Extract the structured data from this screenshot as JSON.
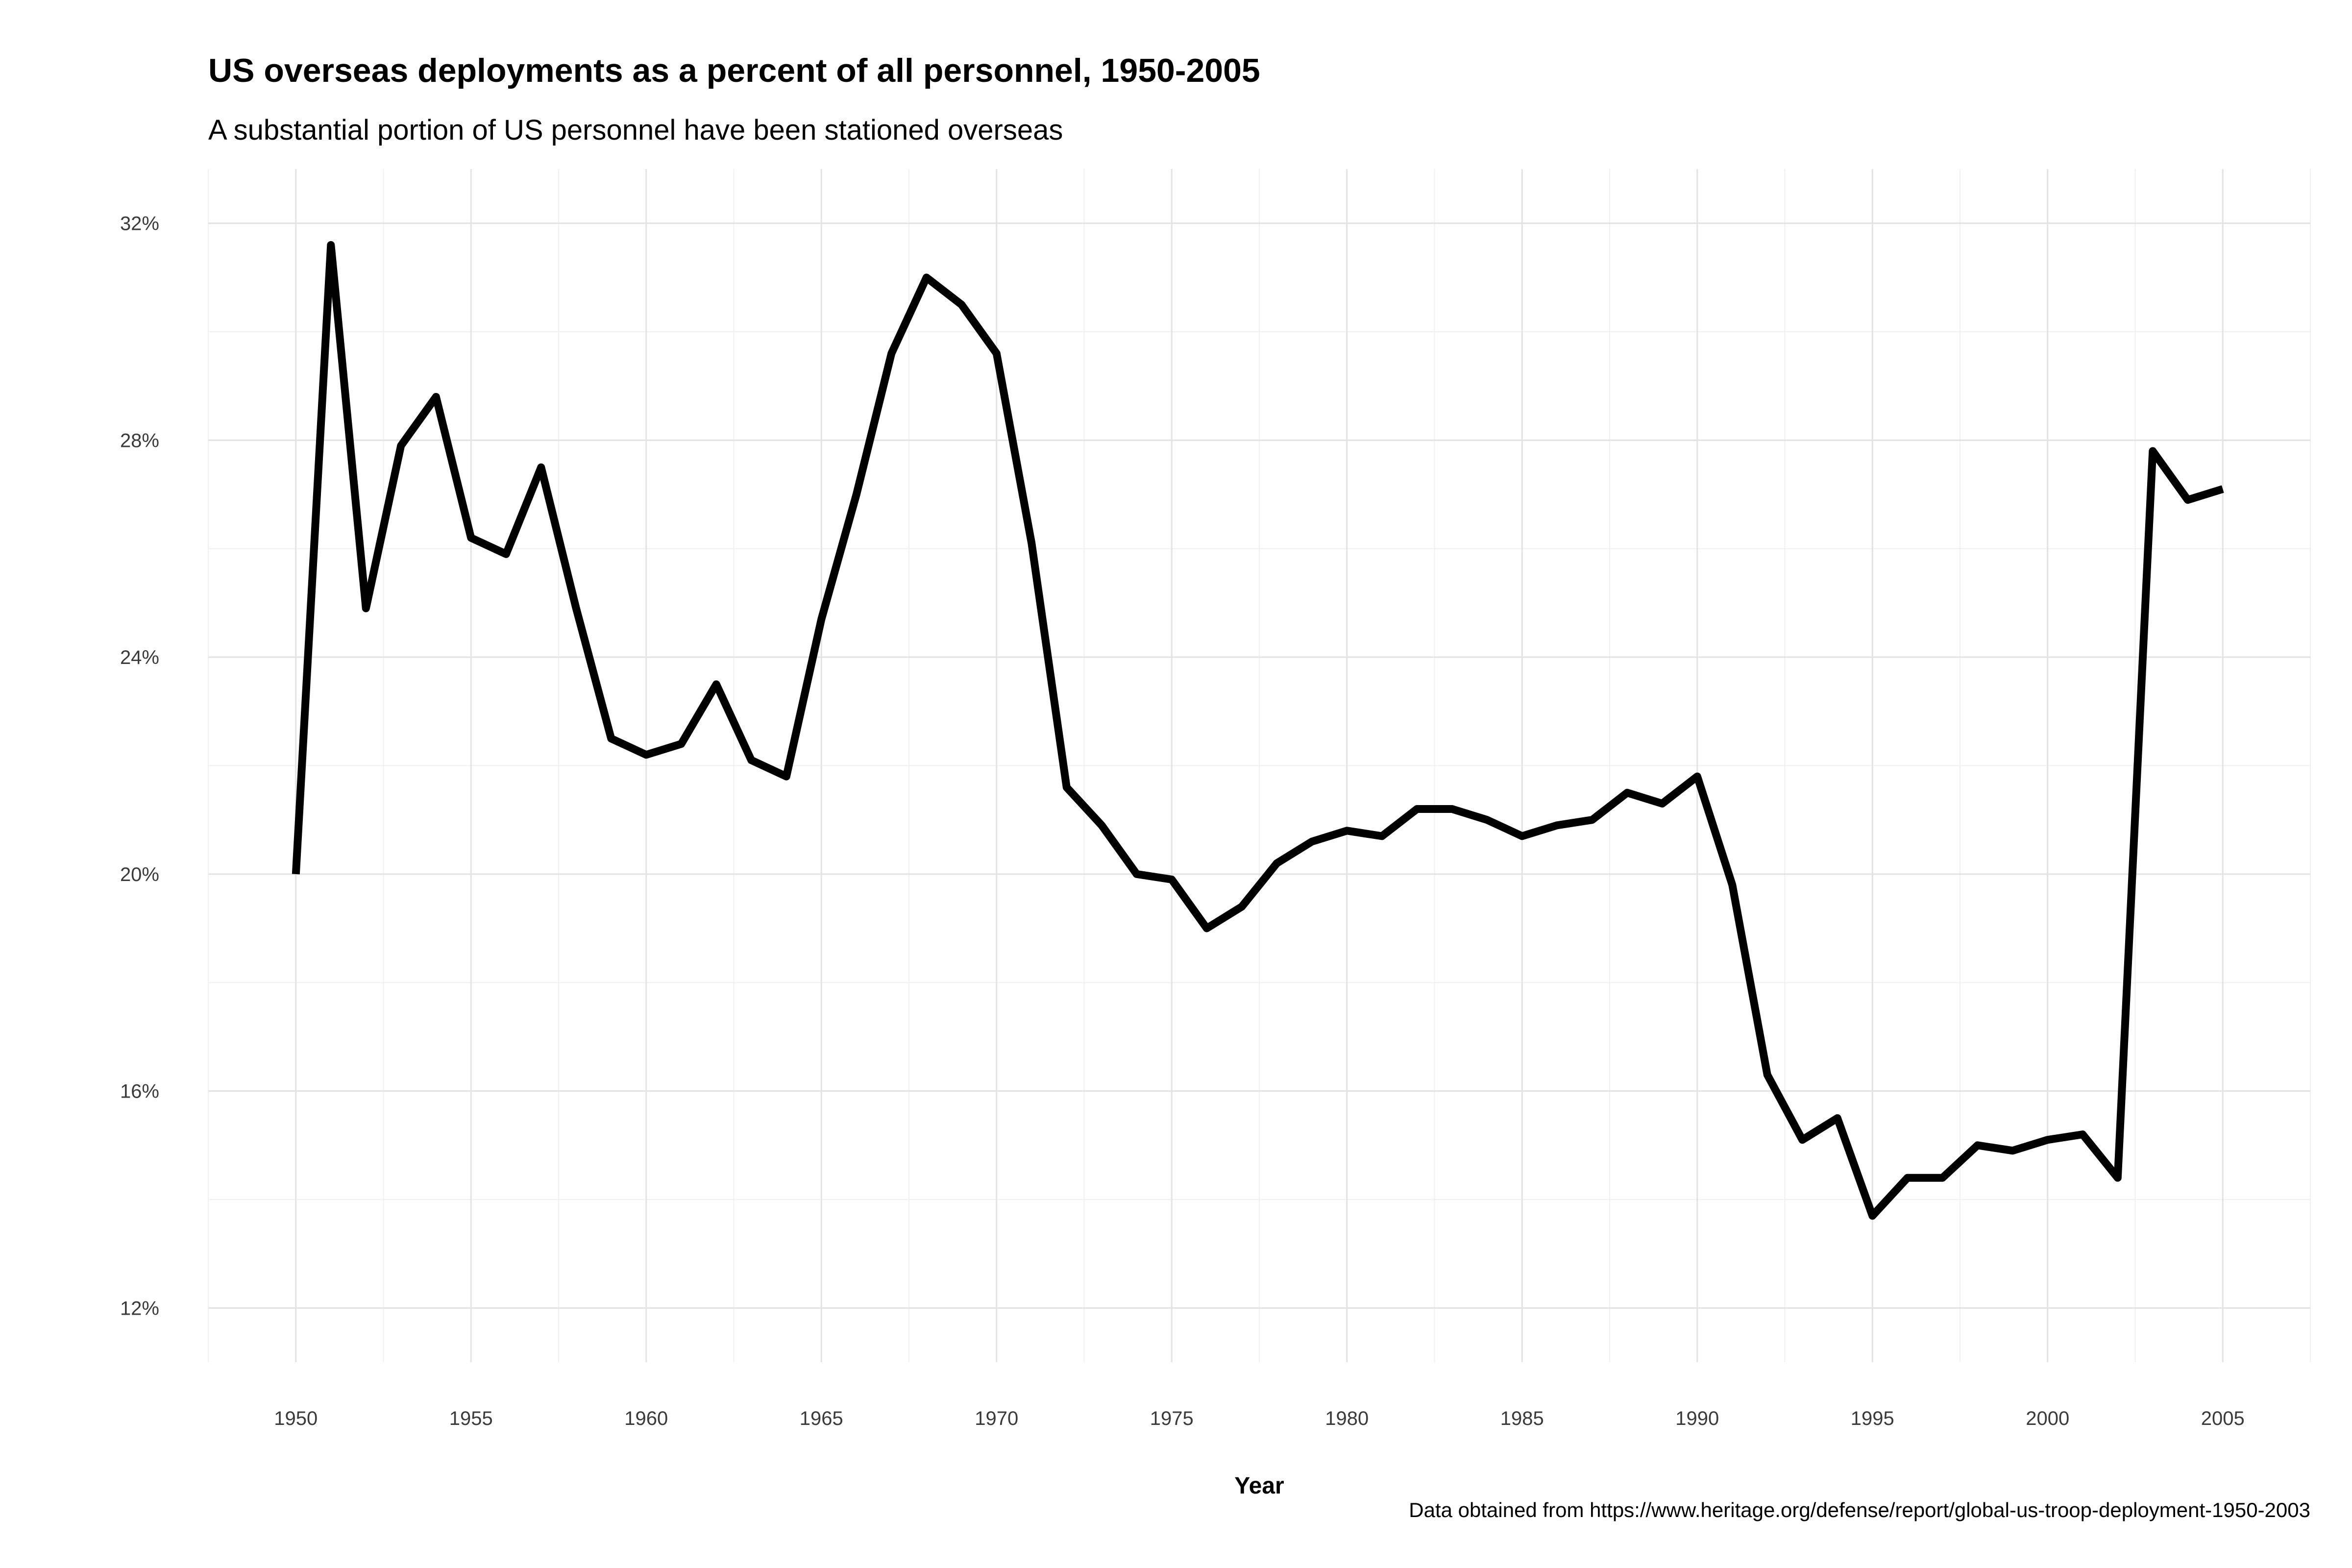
{
  "chart_data": {
    "type": "line",
    "title": "US overseas deployments as a percent of all personnel, 1950-2005",
    "subtitle": "A substantial portion of US personnel have been stationed overseas",
    "xlabel": "Year",
    "ylabel": "",
    "caption": "Data obtained from https://www.heritage.org/defense/report/global-us-troop-deployment-1950-2003",
    "xlim": [
      1947.5,
      2007.5
    ],
    "ylim": [
      11.0,
      33.0
    ],
    "x_ticks": [
      1950,
      1955,
      1960,
      1965,
      1970,
      1975,
      1980,
      1985,
      1990,
      1995,
      2000,
      2005
    ],
    "x_tick_labels": [
      "1950",
      "1955",
      "1960",
      "1965",
      "1970",
      "1975",
      "1980",
      "1985",
      "1990",
      "1995",
      "2000",
      "2005"
    ],
    "y_ticks": [
      12,
      16,
      20,
      24,
      28,
      32
    ],
    "y_tick_labels": [
      "12%",
      "16%",
      "20%",
      "24%",
      "28%",
      "32%"
    ],
    "grid": true,
    "line_color": "#000000",
    "series": [
      {
        "x": [
          1950,
          1951,
          1952,
          1953,
          1954,
          1955,
          1956,
          1957,
          1958,
          1959,
          1960,
          1961,
          1962,
          1963,
          1964,
          1965,
          1966,
          1967,
          1968,
          1969,
          1970,
          1971,
          1972,
          1973,
          1974,
          1975,
          1976,
          1977,
          1978,
          1979,
          1980,
          1981,
          1982,
          1983,
          1984,
          1985,
          1986,
          1987,
          1988,
          1989,
          1990,
          1991,
          1992,
          1993,
          1994,
          1995,
          1996,
          1997,
          1998,
          1999,
          2000,
          2001,
          2002,
          2003,
          2004,
          2005
        ],
        "values": [
          20.0,
          31.6,
          24.9,
          27.9,
          28.8,
          26.2,
          25.9,
          27.5,
          24.9,
          22.5,
          22.2,
          22.4,
          23.5,
          22.1,
          21.8,
          24.7,
          27.0,
          29.6,
          31.0,
          30.5,
          29.6,
          26.1,
          21.6,
          20.9,
          20.0,
          19.9,
          19.0,
          19.4,
          20.2,
          20.6,
          20.8,
          20.7,
          21.2,
          21.2,
          21.0,
          20.7,
          20.9,
          21.0,
          21.5,
          21.3,
          21.8,
          19.8,
          16.3,
          15.1,
          15.5,
          13.7,
          14.4,
          14.4,
          15.0,
          14.9,
          15.1,
          15.2,
          14.4,
          27.8,
          26.9,
          27.1
        ]
      }
    ]
  }
}
